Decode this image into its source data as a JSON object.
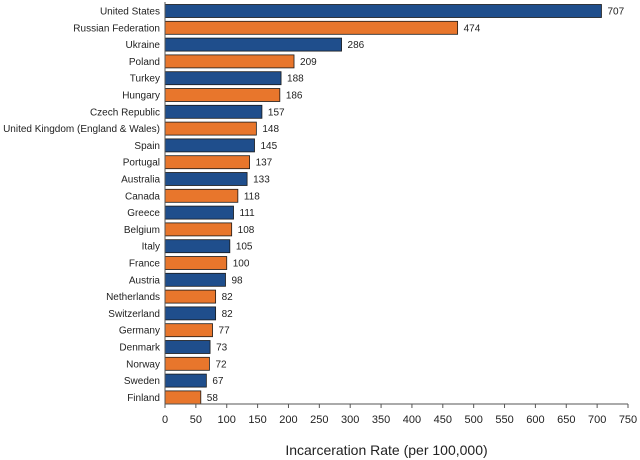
{
  "chart_data": {
    "type": "bar",
    "orientation": "horizontal",
    "title": "",
    "xlabel": "Incarceration Rate (per 100,000)",
    "ylabel": "",
    "xlim": [
      0,
      750
    ],
    "x_ticks": [
      0,
      50,
      100,
      150,
      200,
      250,
      300,
      350,
      400,
      450,
      500,
      550,
      600,
      650,
      700,
      750
    ],
    "grid": false,
    "legend": "none",
    "colors": {
      "blue": "#1f4e8c",
      "orange": "#e8762c"
    },
    "categories": [
      "United States",
      "Russian Federation",
      "Ukraine",
      "Poland",
      "Turkey",
      "Hungary",
      "Czech Republic",
      "United Kingdom (England & Wales)",
      "Spain",
      "Portugal",
      "Australia",
      "Canada",
      "Greece",
      "Belgium",
      "Italy",
      "France",
      "Austria",
      "Netherlands",
      "Switzerland",
      "Germany",
      "Denmark",
      "Norway",
      "Sweden",
      "Finland"
    ],
    "values": [
      707,
      474,
      286,
      209,
      188,
      186,
      157,
      148,
      145,
      137,
      133,
      118,
      111,
      108,
      105,
      100,
      98,
      82,
      82,
      77,
      73,
      72,
      67,
      58
    ],
    "value_labels": [
      "707",
      "474",
      "286",
      "209",
      "188",
      "186",
      "157",
      "148",
      "145",
      "137",
      "133",
      "118",
      "111",
      "108",
      "105",
      "100",
      "98",
      "82",
      "82",
      "77",
      "73",
      "72",
      "67",
      "58"
    ],
    "bar_colors": [
      "blue",
      "orange",
      "blue",
      "orange",
      "blue",
      "orange",
      "blue",
      "orange",
      "blue",
      "orange",
      "blue",
      "orange",
      "blue",
      "orange",
      "blue",
      "orange",
      "blue",
      "orange",
      "blue",
      "orange",
      "blue",
      "orange",
      "blue",
      "orange"
    ]
  }
}
